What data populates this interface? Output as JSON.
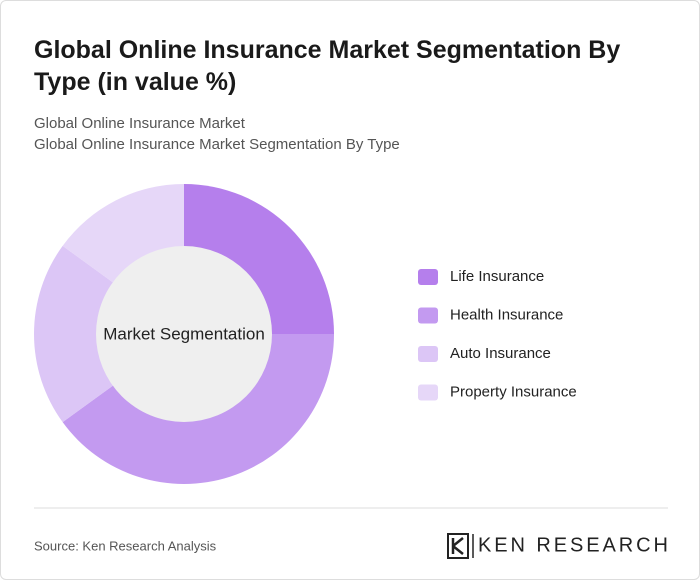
{
  "chart_data": {
    "type": "pie",
    "title": "Global Online Insurance Market Segmentation By Type (in value %)",
    "subtitle_lines": [
      "Global Online Insurance Market",
      "Global Online Insurance Market Segmentation By Type"
    ],
    "center_label": "Market Segmentation",
    "categories": [
      "Life Insurance",
      "Health Insurance",
      "Auto Insurance",
      "Property Insurance"
    ],
    "values": [
      25,
      40,
      20,
      15
    ],
    "colors": [
      "#b57fec",
      "#c39af0",
      "#dcc6f6",
      "#e6d7f8"
    ]
  },
  "footer": {
    "source": "Source: Ken Research Analysis",
    "logo": "KEN RESEARCH"
  }
}
